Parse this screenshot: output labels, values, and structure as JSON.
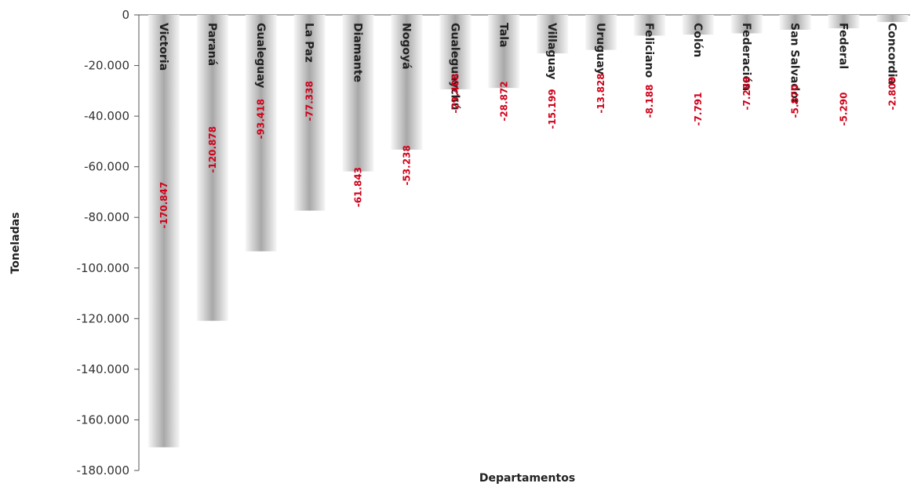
{
  "chart_data": {
    "type": "bar",
    "title": "",
    "xlabel": "Departamentos",
    "ylabel": "Toneladas",
    "ylim": [
      -180000,
      0
    ],
    "yticks": [
      0,
      -20000,
      -40000,
      -60000,
      -80000,
      -100000,
      -120000,
      -140000,
      -160000,
      -180000
    ],
    "ytick_labels": [
      "0",
      "-20.000",
      "-40.000",
      "-60.000",
      "-80.000",
      "-100.000",
      "-120.000",
      "-140.000",
      "-160.000",
      "-180.000"
    ],
    "categories": [
      "Victoria",
      "Paraná",
      "Gualeguay",
      "La Paz",
      "Diamante",
      "Nogoyá",
      "Gualeguaychú",
      "Tala",
      "Villaguay",
      "Uruguay",
      "Feliciano",
      "Colón",
      "Federación",
      "San Salvador",
      "Federal",
      "Concordia"
    ],
    "values": [
      -170847,
      -120878,
      -93418,
      -77338,
      -61843,
      -53238,
      -29408,
      -28872,
      -15199,
      -13828,
      -8188,
      -7791,
      -7288,
      -5870,
      -5290,
      -2809
    ],
    "data_labels": [
      "-170.847",
      "-120.878",
      "-93.418",
      "-77.338",
      "-61.843",
      "-53.238",
      "-29.408",
      "-28.872",
      "-15.199",
      "-13.828",
      "-8.188",
      "-7.791",
      "-7.288",
      "-5.870",
      "-5.290",
      "-2.809"
    ],
    "grid": false,
    "legend": "none",
    "colors": {
      "bar_light": "#f7f7f7",
      "bar_dark": "#a8a8a8",
      "label": "#d0021b",
      "axis": "#555555"
    }
  }
}
